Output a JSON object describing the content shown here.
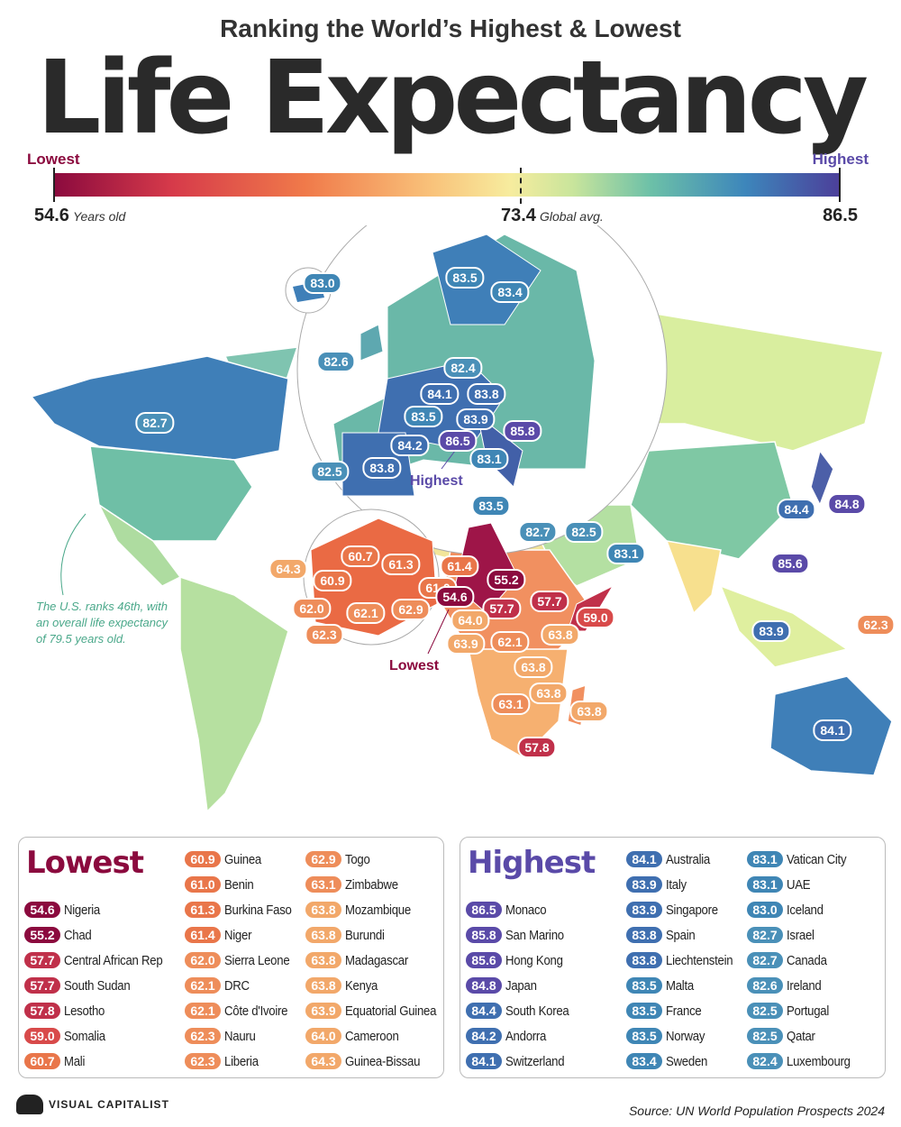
{
  "header": {
    "subtitle": "Ranking the World’s Highest & Lowest",
    "title": "Life Expectancy"
  },
  "scale": {
    "low_label": "Lowest",
    "high_label": "Highest",
    "min": "54.6",
    "min_unit": "Years old",
    "avg": "73.4",
    "avg_unit": "Global avg.",
    "max": "86.5",
    "colors": {
      "low": "#8b0a3e",
      "mid": "#f7ec9e",
      "high": "#4c3f9a"
    }
  },
  "map": {
    "labels": [
      "83.0",
      "83.5",
      "83.4",
      "82.6",
      "82.4",
      "84.1",
      "83.8",
      "83.5",
      "83.9",
      "85.8",
      "84.2",
      "86.5",
      "83.1",
      "82.5",
      "83.8",
      "82.7",
      "83.5",
      "82.7",
      "82.5",
      "83.1",
      "84.4",
      "84.8",
      "85.6",
      "83.9",
      "62.3",
      "84.1",
      "60.7",
      "61.3",
      "60.9",
      "61.0",
      "62.9",
      "62.0",
      "62.1",
      "62.3",
      "64.3",
      "61.4",
      "55.2",
      "54.6",
      "57.7",
      "57.7",
      "64.0",
      "59.0",
      "63.9",
      "62.1",
      "63.8",
      "63.8",
      "63.8",
      "63.1",
      "63.8",
      "57.8"
    ],
    "highest_note": "Highest",
    "lowest_note": "Lowest",
    "us_note": "The U.S. ranks 46th, with an overall life expectancy of 79.5 years old."
  },
  "lowest": {
    "title": "Lowest",
    "items": [
      [
        "54.6",
        "Nigeria"
      ],
      [
        "55.2",
        "Chad"
      ],
      [
        "57.7",
        "Central African Rep"
      ],
      [
        "57.7",
        "South Sudan"
      ],
      [
        "57.8",
        "Lesotho"
      ],
      [
        "59.0",
        "Somalia"
      ],
      [
        "60.7",
        "Mali"
      ],
      [
        "60.9",
        "Guinea"
      ],
      [
        "61.0",
        "Benin"
      ],
      [
        "61.3",
        "Burkina Faso"
      ],
      [
        "61.4",
        "Niger"
      ],
      [
        "62.0",
        "Sierra Leone"
      ],
      [
        "62.1",
        "DRC"
      ],
      [
        "62.1",
        "Côte d'Ivoire"
      ],
      [
        "62.3",
        "Nauru"
      ],
      [
        "62.3",
        "Liberia"
      ],
      [
        "62.9",
        "Togo"
      ],
      [
        "63.1",
        "Zimbabwe"
      ],
      [
        "63.8",
        "Mozambique"
      ],
      [
        "63.8",
        "Burundi"
      ],
      [
        "63.8",
        "Madagascar"
      ],
      [
        "63.8",
        "Kenya"
      ],
      [
        "63.9",
        "Equatorial Guinea"
      ],
      [
        "64.0",
        "Cameroon"
      ],
      [
        "64.3",
        "Guinea-Bissau"
      ]
    ]
  },
  "highest": {
    "title": "Highest",
    "items": [
      [
        "86.5",
        "Monaco"
      ],
      [
        "85.8",
        "San Marino"
      ],
      [
        "85.6",
        "Hong Kong"
      ],
      [
        "84.8",
        "Japan"
      ],
      [
        "84.4",
        "South Korea"
      ],
      [
        "84.2",
        "Andorra"
      ],
      [
        "84.1",
        "Switzerland"
      ],
      [
        "84.1",
        "Australia"
      ],
      [
        "83.9",
        "Italy"
      ],
      [
        "83.9",
        "Singapore"
      ],
      [
        "83.8",
        "Spain"
      ],
      [
        "83.8",
        "Liechtenstein"
      ],
      [
        "83.5",
        "Malta"
      ],
      [
        "83.5",
        "France"
      ],
      [
        "83.5",
        "Norway"
      ],
      [
        "83.4",
        "Sweden"
      ],
      [
        "83.1",
        "Vatican City"
      ],
      [
        "83.1",
        "UAE"
      ],
      [
        "83.0",
        "Iceland"
      ],
      [
        "82.7",
        "Israel"
      ],
      [
        "82.7",
        "Canada"
      ],
      [
        "82.6",
        "Ireland"
      ],
      [
        "82.5",
        "Portugal"
      ],
      [
        "82.5",
        "Qatar"
      ],
      [
        "82.4",
        "Luxembourg"
      ]
    ]
  },
  "footer": {
    "logo": "VISUAL CAPITALIST",
    "source": "Source: UN World Population Prospects 2024"
  }
}
